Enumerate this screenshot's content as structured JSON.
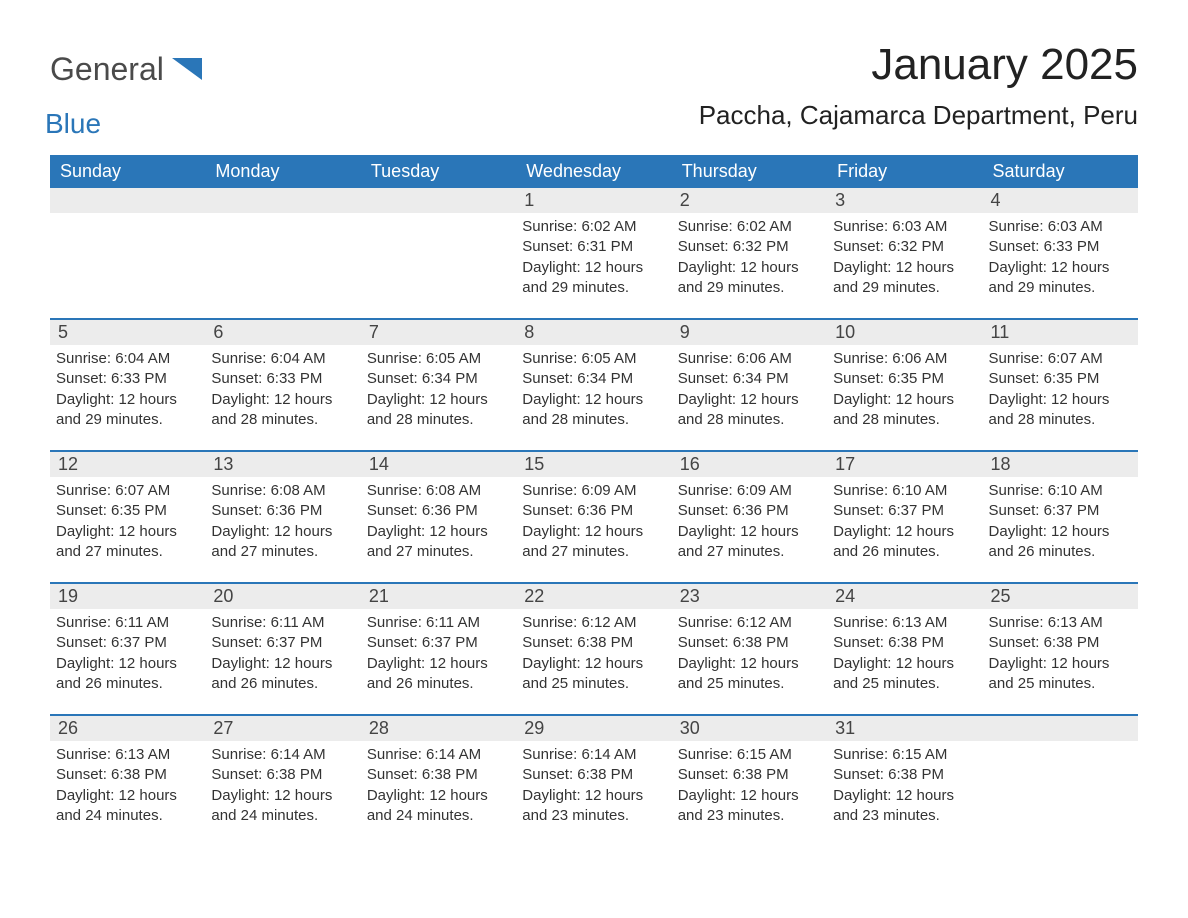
{
  "brand": {
    "text_main": "General",
    "text_sub": "Blue",
    "color_main": "#4a4a4a",
    "color_sub": "#2a76b8"
  },
  "title": {
    "month": "January 2025",
    "location": "Paccha, Cajamarca Department, Peru"
  },
  "colors": {
    "header_bg": "#2a76b8",
    "header_text": "#ffffff",
    "daynum_bg": "#ececec",
    "daynum_text": "#444444",
    "border": "#2a76b8",
    "body_text": "#333333",
    "page_bg": "#ffffff"
  },
  "day_headers": [
    "Sunday",
    "Monday",
    "Tuesday",
    "Wednesday",
    "Thursday",
    "Friday",
    "Saturday"
  ],
  "weeks": [
    [
      {
        "num": "",
        "sunrise": "",
        "sunset": "",
        "daylight1": "",
        "daylight2": ""
      },
      {
        "num": "",
        "sunrise": "",
        "sunset": "",
        "daylight1": "",
        "daylight2": ""
      },
      {
        "num": "",
        "sunrise": "",
        "sunset": "",
        "daylight1": "",
        "daylight2": ""
      },
      {
        "num": "1",
        "sunrise": "Sunrise: 6:02 AM",
        "sunset": "Sunset: 6:31 PM",
        "daylight1": "Daylight: 12 hours",
        "daylight2": "and 29 minutes."
      },
      {
        "num": "2",
        "sunrise": "Sunrise: 6:02 AM",
        "sunset": "Sunset: 6:32 PM",
        "daylight1": "Daylight: 12 hours",
        "daylight2": "and 29 minutes."
      },
      {
        "num": "3",
        "sunrise": "Sunrise: 6:03 AM",
        "sunset": "Sunset: 6:32 PM",
        "daylight1": "Daylight: 12 hours",
        "daylight2": "and 29 minutes."
      },
      {
        "num": "4",
        "sunrise": "Sunrise: 6:03 AM",
        "sunset": "Sunset: 6:33 PM",
        "daylight1": "Daylight: 12 hours",
        "daylight2": "and 29 minutes."
      }
    ],
    [
      {
        "num": "5",
        "sunrise": "Sunrise: 6:04 AM",
        "sunset": "Sunset: 6:33 PM",
        "daylight1": "Daylight: 12 hours",
        "daylight2": "and 29 minutes."
      },
      {
        "num": "6",
        "sunrise": "Sunrise: 6:04 AM",
        "sunset": "Sunset: 6:33 PM",
        "daylight1": "Daylight: 12 hours",
        "daylight2": "and 28 minutes."
      },
      {
        "num": "7",
        "sunrise": "Sunrise: 6:05 AM",
        "sunset": "Sunset: 6:34 PM",
        "daylight1": "Daylight: 12 hours",
        "daylight2": "and 28 minutes."
      },
      {
        "num": "8",
        "sunrise": "Sunrise: 6:05 AM",
        "sunset": "Sunset: 6:34 PM",
        "daylight1": "Daylight: 12 hours",
        "daylight2": "and 28 minutes."
      },
      {
        "num": "9",
        "sunrise": "Sunrise: 6:06 AM",
        "sunset": "Sunset: 6:34 PM",
        "daylight1": "Daylight: 12 hours",
        "daylight2": "and 28 minutes."
      },
      {
        "num": "10",
        "sunrise": "Sunrise: 6:06 AM",
        "sunset": "Sunset: 6:35 PM",
        "daylight1": "Daylight: 12 hours",
        "daylight2": "and 28 minutes."
      },
      {
        "num": "11",
        "sunrise": "Sunrise: 6:07 AM",
        "sunset": "Sunset: 6:35 PM",
        "daylight1": "Daylight: 12 hours",
        "daylight2": "and 28 minutes."
      }
    ],
    [
      {
        "num": "12",
        "sunrise": "Sunrise: 6:07 AM",
        "sunset": "Sunset: 6:35 PM",
        "daylight1": "Daylight: 12 hours",
        "daylight2": "and 27 minutes."
      },
      {
        "num": "13",
        "sunrise": "Sunrise: 6:08 AM",
        "sunset": "Sunset: 6:36 PM",
        "daylight1": "Daylight: 12 hours",
        "daylight2": "and 27 minutes."
      },
      {
        "num": "14",
        "sunrise": "Sunrise: 6:08 AM",
        "sunset": "Sunset: 6:36 PM",
        "daylight1": "Daylight: 12 hours",
        "daylight2": "and 27 minutes."
      },
      {
        "num": "15",
        "sunrise": "Sunrise: 6:09 AM",
        "sunset": "Sunset: 6:36 PM",
        "daylight1": "Daylight: 12 hours",
        "daylight2": "and 27 minutes."
      },
      {
        "num": "16",
        "sunrise": "Sunrise: 6:09 AM",
        "sunset": "Sunset: 6:36 PM",
        "daylight1": "Daylight: 12 hours",
        "daylight2": "and 27 minutes."
      },
      {
        "num": "17",
        "sunrise": "Sunrise: 6:10 AM",
        "sunset": "Sunset: 6:37 PM",
        "daylight1": "Daylight: 12 hours",
        "daylight2": "and 26 minutes."
      },
      {
        "num": "18",
        "sunrise": "Sunrise: 6:10 AM",
        "sunset": "Sunset: 6:37 PM",
        "daylight1": "Daylight: 12 hours",
        "daylight2": "and 26 minutes."
      }
    ],
    [
      {
        "num": "19",
        "sunrise": "Sunrise: 6:11 AM",
        "sunset": "Sunset: 6:37 PM",
        "daylight1": "Daylight: 12 hours",
        "daylight2": "and 26 minutes."
      },
      {
        "num": "20",
        "sunrise": "Sunrise: 6:11 AM",
        "sunset": "Sunset: 6:37 PM",
        "daylight1": "Daylight: 12 hours",
        "daylight2": "and 26 minutes."
      },
      {
        "num": "21",
        "sunrise": "Sunrise: 6:11 AM",
        "sunset": "Sunset: 6:37 PM",
        "daylight1": "Daylight: 12 hours",
        "daylight2": "and 26 minutes."
      },
      {
        "num": "22",
        "sunrise": "Sunrise: 6:12 AM",
        "sunset": "Sunset: 6:38 PM",
        "daylight1": "Daylight: 12 hours",
        "daylight2": "and 25 minutes."
      },
      {
        "num": "23",
        "sunrise": "Sunrise: 6:12 AM",
        "sunset": "Sunset: 6:38 PM",
        "daylight1": "Daylight: 12 hours",
        "daylight2": "and 25 minutes."
      },
      {
        "num": "24",
        "sunrise": "Sunrise: 6:13 AM",
        "sunset": "Sunset: 6:38 PM",
        "daylight1": "Daylight: 12 hours",
        "daylight2": "and 25 minutes."
      },
      {
        "num": "25",
        "sunrise": "Sunrise: 6:13 AM",
        "sunset": "Sunset: 6:38 PM",
        "daylight1": "Daylight: 12 hours",
        "daylight2": "and 25 minutes."
      }
    ],
    [
      {
        "num": "26",
        "sunrise": "Sunrise: 6:13 AM",
        "sunset": "Sunset: 6:38 PM",
        "daylight1": "Daylight: 12 hours",
        "daylight2": "and 24 minutes."
      },
      {
        "num": "27",
        "sunrise": "Sunrise: 6:14 AM",
        "sunset": "Sunset: 6:38 PM",
        "daylight1": "Daylight: 12 hours",
        "daylight2": "and 24 minutes."
      },
      {
        "num": "28",
        "sunrise": "Sunrise: 6:14 AM",
        "sunset": "Sunset: 6:38 PM",
        "daylight1": "Daylight: 12 hours",
        "daylight2": "and 24 minutes."
      },
      {
        "num": "29",
        "sunrise": "Sunrise: 6:14 AM",
        "sunset": "Sunset: 6:38 PM",
        "daylight1": "Daylight: 12 hours",
        "daylight2": "and 23 minutes."
      },
      {
        "num": "30",
        "sunrise": "Sunrise: 6:15 AM",
        "sunset": "Sunset: 6:38 PM",
        "daylight1": "Daylight: 12 hours",
        "daylight2": "and 23 minutes."
      },
      {
        "num": "31",
        "sunrise": "Sunrise: 6:15 AM",
        "sunset": "Sunset: 6:38 PM",
        "daylight1": "Daylight: 12 hours",
        "daylight2": "and 23 minutes."
      },
      {
        "num": "",
        "sunrise": "",
        "sunset": "",
        "daylight1": "",
        "daylight2": ""
      }
    ]
  ]
}
